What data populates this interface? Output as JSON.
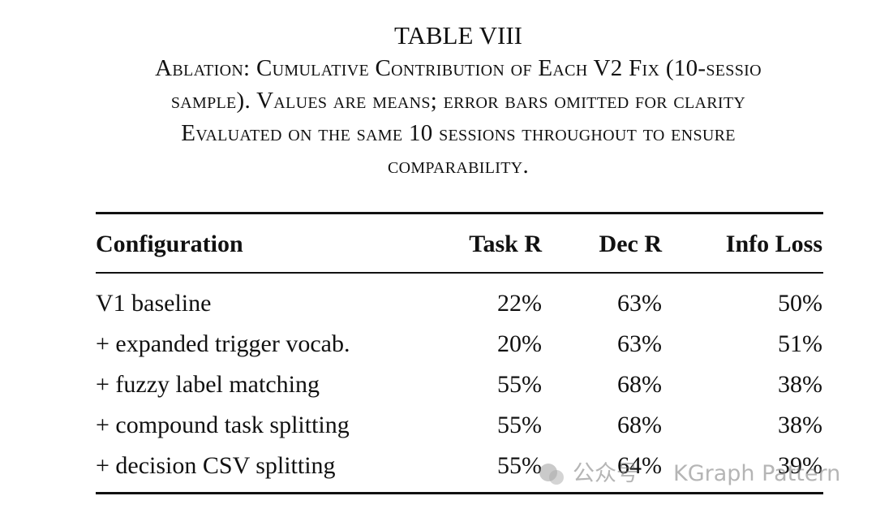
{
  "caption": {
    "title": "TABLE VIII",
    "lines": [
      "Ablation: Cumulative Contribution of Each V2 Fix (10-sessio",
      "sample). Values are means; error bars omitted for clarity",
      "Evaluated on the same 10 sessions throughout to ensure",
      "comparability."
    ]
  },
  "table": {
    "header": [
      "Configuration",
      "Task R",
      "Dec R",
      "Info Loss"
    ],
    "rows": [
      [
        "V1 baseline",
        "22%",
        "63%",
        "50%"
      ],
      [
        "+ expanded trigger vocab.",
        "20%",
        "63%",
        "51%"
      ],
      [
        "+ fuzzy label matching",
        "55%",
        "68%",
        "38%"
      ],
      [
        "+ compound task splitting",
        "55%",
        "68%",
        "38%"
      ],
      [
        "+ decision CSV splitting",
        "55%",
        "64%",
        "39%"
      ]
    ]
  },
  "watermark": {
    "source": "公众号",
    "name": "KGraph Pattern"
  }
}
